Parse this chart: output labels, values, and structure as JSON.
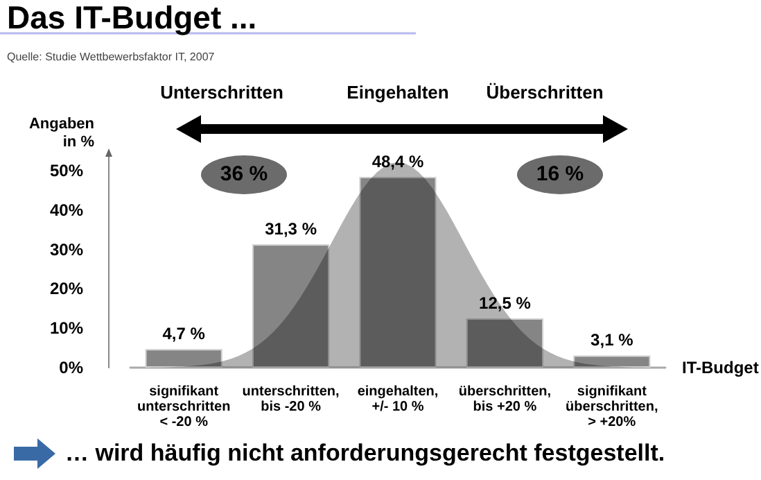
{
  "chart_data": {
    "type": "bar",
    "title": "Das IT-Budget ...",
    "xlabel": "IT-Budget",
    "ylabel": "Angaben\nin %",
    "categories": [
      "signifikant\nunterschritten\n< -20 %",
      "unterschritten,\nbis -20 %",
      "eingehalten,\n+/- 10 %",
      "überschritten,\nbis +20 %",
      "signifikant\nüberschritten,\n> +20%"
    ],
    "values": [
      4.7,
      31.3,
      48.4,
      12.5,
      3.1
    ],
    "value_labels": [
      "4,7 %",
      "31,3 %",
      "48,4 %",
      "12,5 %",
      "3,1 %"
    ],
    "color": "#858585",
    "ylim": [
      0,
      50
    ],
    "yticks": [
      {
        "value": 0,
        "label": "0%"
      },
      {
        "value": 10,
        "label": "10%"
      },
      {
        "value": 20,
        "label": "20%"
      },
      {
        "value": 30,
        "label": "30%"
      },
      {
        "value": 40,
        "label": "40%"
      },
      {
        "value": 50,
        "label": "50%"
      }
    ],
    "grid": false,
    "annotations": [
      "Quelle: Studie Wettbewerbsfaktor IT, 2007",
      "Unterschritten",
      "Eingehalten",
      "Überschritten",
      "36 %",
      "16 %",
      "… wird häufig nicht anforderungsgerecht festgestellt."
    ]
  }
}
